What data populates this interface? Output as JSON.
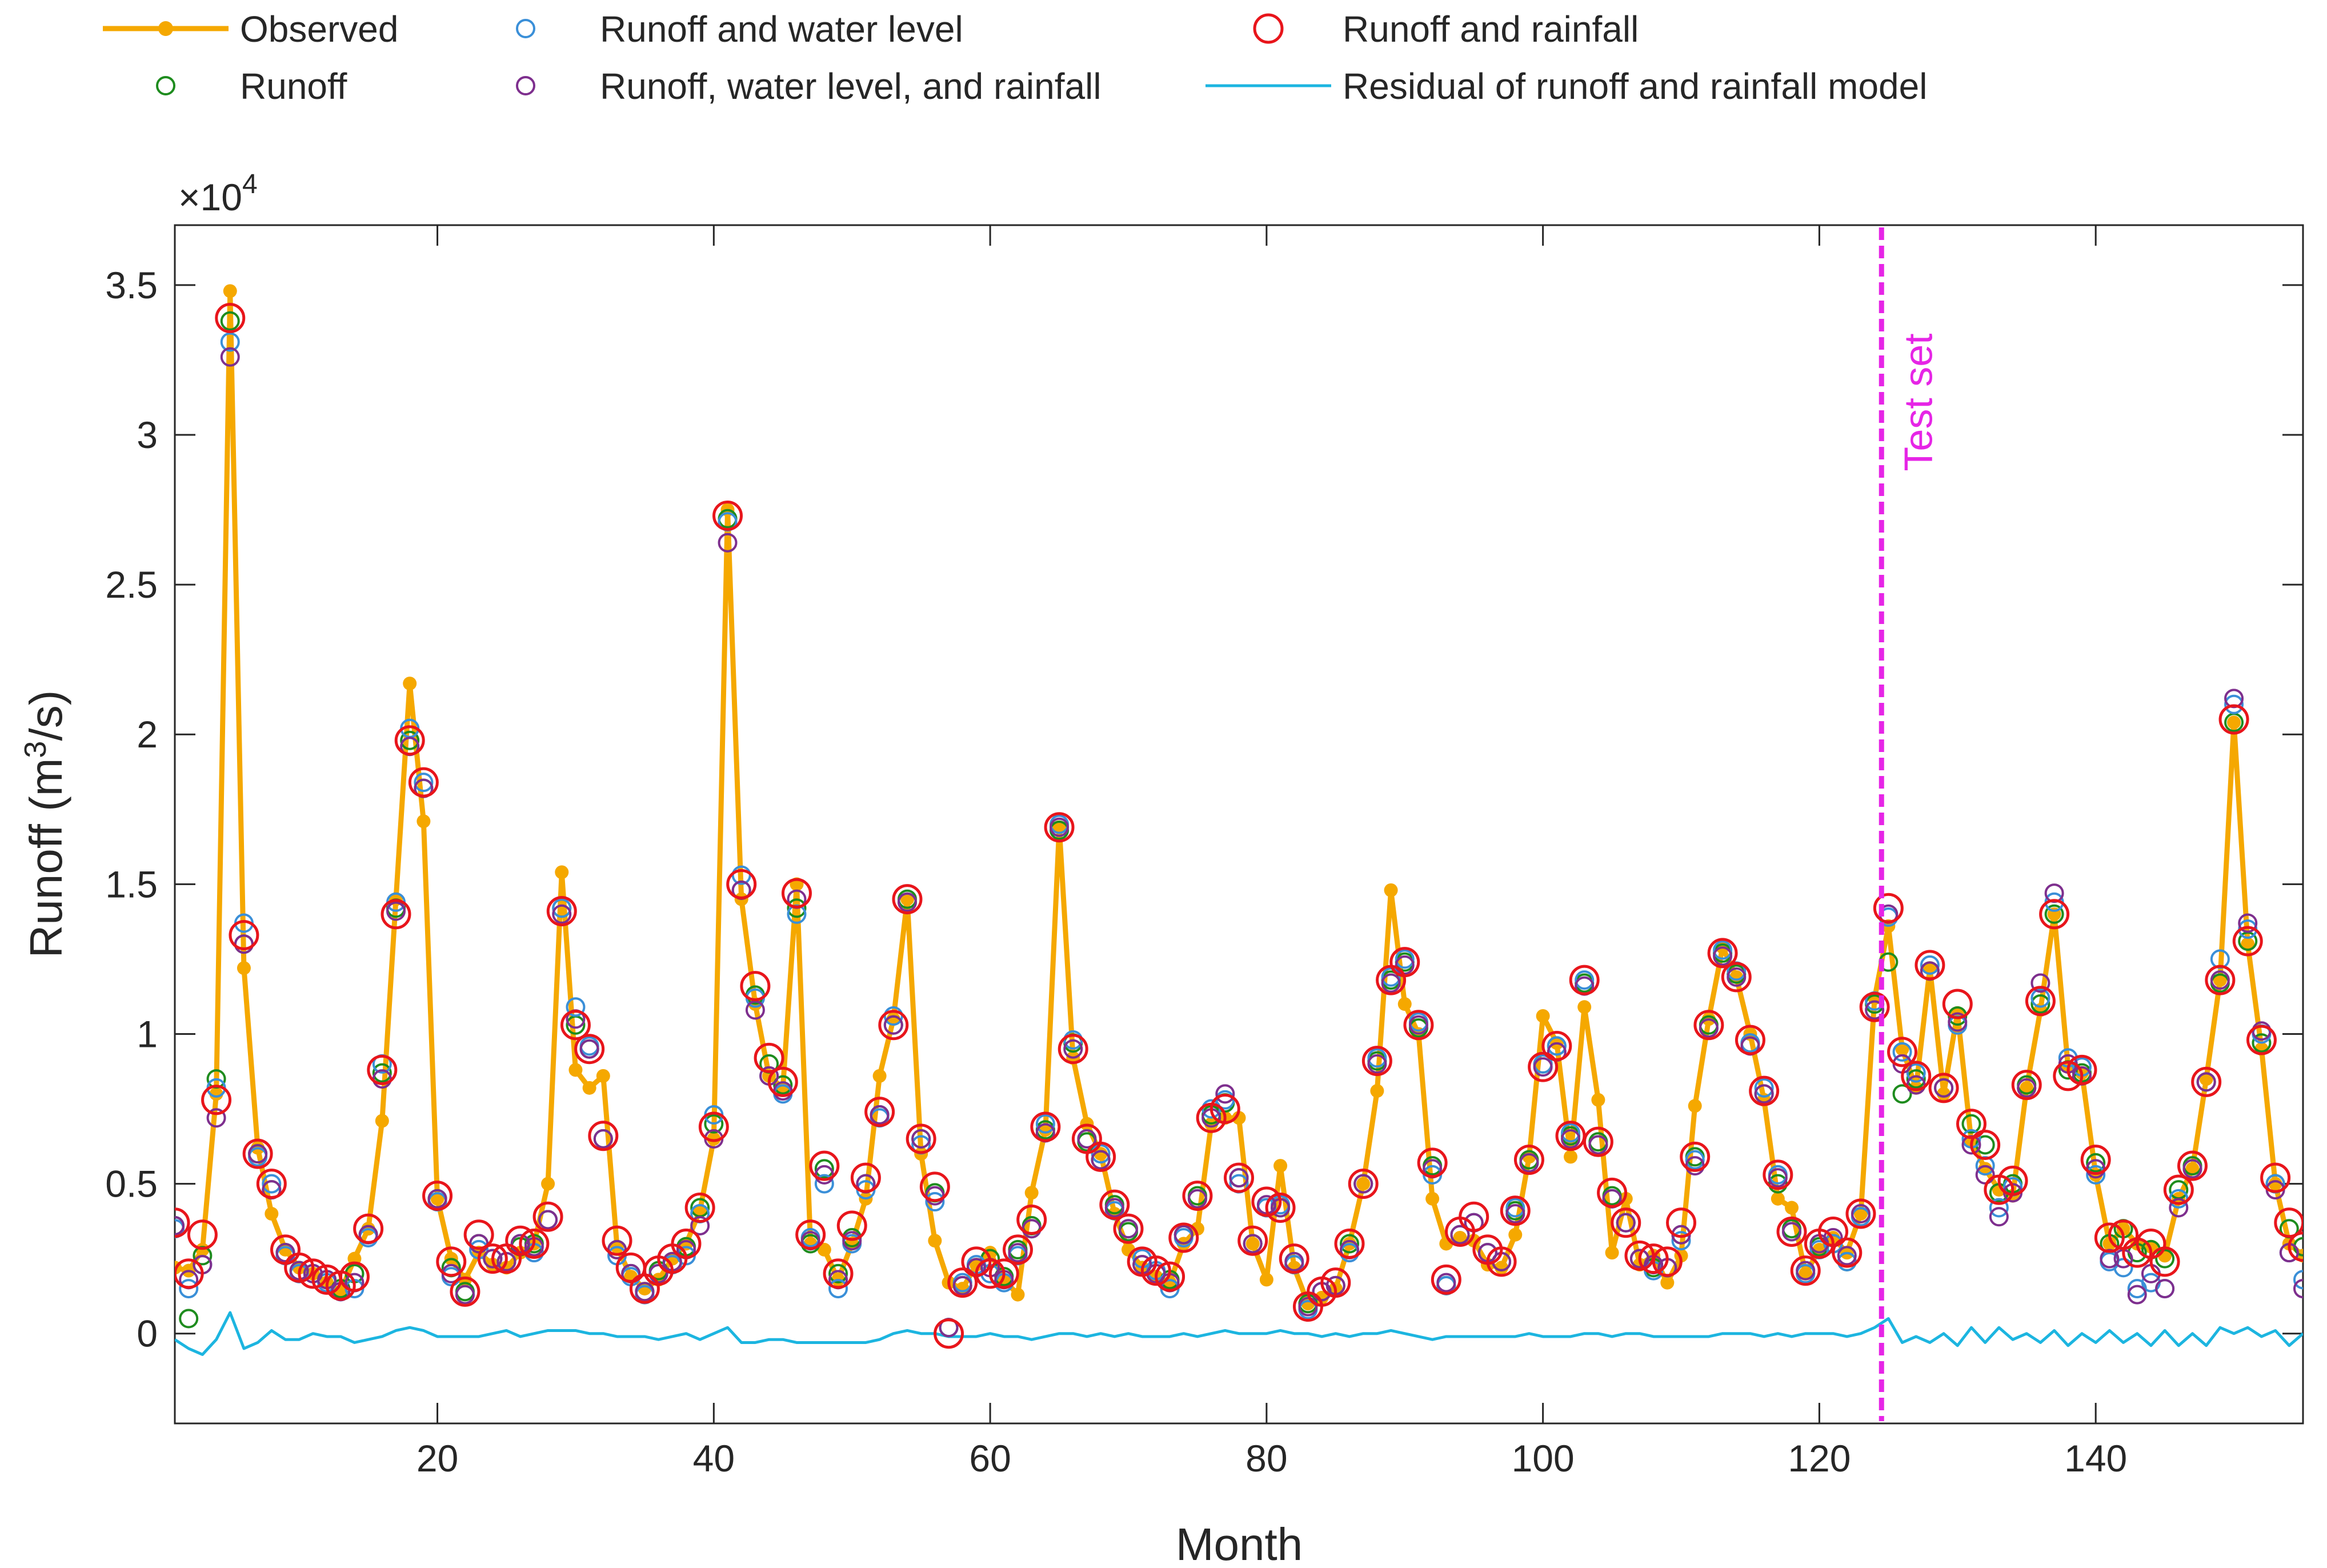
{
  "chart_data": {
    "type": "line",
    "title": "",
    "xlabel": "Month",
    "ylabel": "Runoff (m3/s)",
    "ylabel_base": "Runoff (m",
    "ylabel_sup": "3",
    "ylabel_tail": "/s)",
    "y_multiplier_base": "×10",
    "y_multiplier_exp": "4",
    "xlim": [
      1,
      155
    ],
    "ylim": [
      -0.3,
      3.7
    ],
    "xticks": [
      20,
      40,
      60,
      80,
      100,
      120,
      140
    ],
    "yticks": [
      0,
      0.5,
      1,
      1.5,
      2,
      2.5,
      3,
      3.5
    ],
    "ytick_labels": [
      "0",
      "0.5",
      "1",
      "1.5",
      "2",
      "2.5",
      "3",
      "3.5"
    ],
    "grid": false,
    "legend_position": "top",
    "test_split_month": 124.5,
    "test_label": "Test set",
    "colors": {
      "observed": "#F5A800",
      "runoff": "#1E8C1E",
      "runoff_water_level": "#3A8FD8",
      "runoff_wl_rainfall": "#7E2F8E",
      "runoff_rainfall": "#E8151B",
      "residual": "#1CB5E0",
      "test_line": "#E625E6"
    },
    "legend": [
      {
        "key": "observed",
        "label": "Observed",
        "style": "line-dot"
      },
      {
        "key": "runoff_water_level",
        "label": "Runoff and water level",
        "style": "circle"
      },
      {
        "key": "runoff_rainfall",
        "label": "Runoff and rainfall",
        "style": "circle-large"
      },
      {
        "key": "runoff",
        "label": "Runoff",
        "style": "circle"
      },
      {
        "key": "runoff_wl_rainfall",
        "label": "Runoff, water level, and rainfall",
        "style": "circle"
      },
      {
        "key": "residual",
        "label": "Residual of runoff and rainfall model",
        "style": "line"
      }
    ],
    "x": [
      1,
      2,
      3,
      4,
      5,
      6,
      7,
      8,
      9,
      10,
      11,
      12,
      13,
      14,
      15,
      16,
      17,
      18,
      19,
      20,
      21,
      22,
      23,
      24,
      25,
      26,
      27,
      28,
      29,
      30,
      31,
      32,
      33,
      34,
      35,
      36,
      37,
      38,
      39,
      40,
      41,
      42,
      43,
      44,
      45,
      46,
      47,
      48,
      49,
      50,
      51,
      52,
      53,
      54,
      55,
      56,
      57,
      58,
      59,
      60,
      61,
      62,
      63,
      64,
      65,
      66,
      67,
      68,
      69,
      70,
      71,
      72,
      73,
      74,
      75,
      76,
      77,
      78,
      79,
      80,
      81,
      82,
      83,
      84,
      85,
      86,
      87,
      88,
      89,
      90,
      91,
      92,
      93,
      94,
      95,
      96,
      97,
      98,
      99,
      100,
      101,
      102,
      103,
      104,
      105,
      106,
      107,
      108,
      109,
      110,
      111,
      112,
      113,
      114,
      115,
      116,
      117,
      118,
      119,
      120,
      121,
      122,
      123,
      124,
      125,
      126,
      127,
      128,
      129,
      130,
      131,
      132,
      133,
      134,
      135,
      136,
      137,
      138,
      139,
      140,
      141,
      142,
      143,
      144,
      145,
      146,
      147,
      148,
      149,
      150,
      151,
      152,
      153,
      154,
      155
    ],
    "series": [
      {
        "key": "observed",
        "name": "Observed",
        "values": [
          0.22,
          0.21,
          0.28,
          0.8,
          3.48,
          1.22,
          0.62,
          0.4,
          0.28,
          0.22,
          0.2,
          0.17,
          0.14,
          0.25,
          0.35,
          0.71,
          1.45,
          2.17,
          1.71,
          0.45,
          0.25,
          0.18,
          0.27,
          0.23,
          0.22,
          0.27,
          0.3,
          0.5,
          1.54,
          0.88,
          0.82,
          0.86,
          0.29,
          0.19,
          0.15,
          0.18,
          0.25,
          0.3,
          0.41,
          0.65,
          2.75,
          1.45,
          1.1,
          0.86,
          0.82,
          1.5,
          0.3,
          0.28,
          0.18,
          0.3,
          0.45,
          0.86,
          1.05,
          1.45,
          0.6,
          0.31,
          0.17,
          0.15,
          0.23,
          0.27,
          0.18,
          0.13,
          0.47,
          0.68,
          1.69,
          0.92,
          0.7,
          0.6,
          0.4,
          0.28,
          0.22,
          0.19,
          0.17,
          0.3,
          0.35,
          0.7,
          0.72,
          0.72,
          0.3,
          0.18,
          0.56,
          0.22,
          0.1,
          0.12,
          0.15,
          0.3,
          0.5,
          0.81,
          1.48,
          1.1,
          1.0,
          0.45,
          0.3,
          0.32,
          0.31,
          0.23,
          0.22,
          0.33,
          0.59,
          1.06,
          0.97,
          0.59,
          1.09,
          0.78,
          0.27,
          0.45,
          0.23,
          0.26,
          0.17,
          0.26,
          0.76,
          1.05,
          1.29,
          1.19,
          1.0,
          0.78,
          0.45,
          0.42,
          0.2,
          0.28,
          0.32,
          0.27,
          0.4,
          1.12,
          1.36,
          0.95,
          0.82,
          1.22,
          0.8,
          1.07,
          0.64,
          0.55,
          0.48,
          0.46,
          0.82,
          1.08,
          1.4,
          0.89,
          0.87,
          0.53,
          0.3,
          0.35,
          0.3,
          0.29,
          0.26,
          0.45,
          0.55,
          0.85,
          1.18,
          2.04,
          1.3,
          0.95,
          0.5,
          0.3,
          0.26
        ]
      },
      {
        "key": "runoff",
        "name": "Runoff",
        "values": [
          0.36,
          0.05,
          0.26,
          0.85,
          3.38,
          1.3,
          0.6,
          0.48,
          0.27,
          0.21,
          0.2,
          0.18,
          0.15,
          0.2,
          0.33,
          0.87,
          1.42,
          1.98,
          1.82,
          0.45,
          0.22,
          0.14,
          0.3,
          0.25,
          0.24,
          0.29,
          0.3,
          0.38,
          1.42,
          1.03,
          0.95,
          0.65,
          0.28,
          0.2,
          0.14,
          0.21,
          0.24,
          0.29,
          0.42,
          0.7,
          2.72,
          1.48,
          1.13,
          0.9,
          0.83,
          1.42,
          0.3,
          0.55,
          0.2,
          0.32,
          0.5,
          0.73,
          1.03,
          1.45,
          0.65,
          0.47,
          0.02,
          0.16,
          0.22,
          0.25,
          0.19,
          0.28,
          0.36,
          0.68,
          1.68,
          0.97,
          0.64,
          0.58,
          0.43,
          0.34,
          0.23,
          0.2,
          0.18,
          0.33,
          0.46,
          0.73,
          0.77,
          0.52,
          0.3,
          0.42,
          0.42,
          0.23,
          0.1,
          0.14,
          0.16,
          0.3,
          0.5,
          0.91,
          1.18,
          1.24,
          1.02,
          0.56,
          0.16,
          0.33,
          0.37,
          0.27,
          0.24,
          0.41,
          0.58,
          0.9,
          0.96,
          0.66,
          1.17,
          0.64,
          0.46,
          0.37,
          0.25,
          0.22,
          0.22,
          0.33,
          0.59,
          1.03,
          1.27,
          1.2,
          0.97,
          0.8,
          0.5,
          0.35,
          0.2,
          0.29,
          0.3,
          0.24,
          0.39,
          1.1,
          1.24,
          0.8,
          0.85,
          1.21,
          0.82,
          1.06,
          0.7,
          0.63,
          0.47,
          0.5,
          0.83,
          1.1,
          1.4,
          0.88,
          0.87,
          0.57,
          0.3,
          0.35,
          0.27,
          0.28,
          0.25,
          0.48,
          0.56,
          0.84,
          1.17,
          2.04,
          1.31,
          0.97,
          0.5,
          0.35,
          0.29
        ]
      },
      {
        "key": "runoff_water_level",
        "name": "Runoff and water level",
        "values": [
          0.35,
          0.15,
          0.23,
          0.82,
          3.31,
          1.37,
          0.59,
          0.5,
          0.26,
          0.2,
          0.2,
          0.17,
          0.14,
          0.15,
          0.32,
          0.9,
          1.44,
          2.02,
          1.84,
          0.44,
          0.19,
          0.13,
          0.28,
          0.25,
          0.24,
          0.3,
          0.27,
          0.38,
          1.42,
          1.09,
          0.96,
          0.65,
          0.26,
          0.19,
          0.13,
          0.2,
          0.23,
          0.26,
          0.4,
          0.73,
          2.71,
          1.53,
          1.12,
          0.86,
          0.8,
          1.4,
          0.32,
          0.5,
          0.15,
          0.3,
          0.48,
          0.72,
          1.06,
          1.44,
          0.63,
          0.44,
          0.02,
          0.17,
          0.23,
          0.2,
          0.17,
          0.26,
          0.35,
          0.7,
          1.7,
          0.98,
          0.65,
          0.6,
          0.41,
          0.35,
          0.25,
          0.21,
          0.15,
          0.32,
          0.45,
          0.75,
          0.78,
          0.5,
          0.3,
          0.42,
          0.43,
          0.23,
          0.08,
          0.14,
          0.16,
          0.27,
          0.5,
          0.92,
          1.19,
          1.25,
          1.04,
          0.53,
          0.16,
          0.33,
          0.37,
          0.27,
          0.24,
          0.42,
          0.57,
          0.9,
          0.96,
          0.67,
          1.18,
          0.63,
          0.45,
          0.37,
          0.25,
          0.21,
          0.22,
          0.31,
          0.58,
          1.02,
          1.28,
          1.21,
          0.97,
          0.82,
          0.53,
          0.34,
          0.2,
          0.28,
          0.3,
          0.24,
          0.39,
          1.11,
          1.39,
          0.94,
          0.87,
          1.23,
          0.82,
          1.03,
          0.65,
          0.56,
          0.42,
          0.49,
          0.82,
          1.12,
          1.44,
          0.92,
          0.89,
          0.53,
          0.24,
          0.22,
          0.15,
          0.17,
          0.15,
          0.45,
          0.55,
          0.84,
          1.25,
          2.1,
          1.35,
          1.0,
          0.5,
          0.27,
          0.18
        ]
      },
      {
        "key": "runoff_wl_rainfall",
        "name": "Runoff, water level, and rainfall",
        "values": [
          0.36,
          0.18,
          0.23,
          0.72,
          3.26,
          1.3,
          0.6,
          0.48,
          0.27,
          0.21,
          0.2,
          0.18,
          0.14,
          0.17,
          0.33,
          0.85,
          1.41,
          1.96,
          1.82,
          0.45,
          0.2,
          0.13,
          0.3,
          0.25,
          0.24,
          0.3,
          0.29,
          0.38,
          1.4,
          1.05,
          0.95,
          0.65,
          0.28,
          0.2,
          0.14,
          0.2,
          0.24,
          0.28,
          0.36,
          0.65,
          2.64,
          1.48,
          1.08,
          0.86,
          0.81,
          1.45,
          0.31,
          0.53,
          0.18,
          0.31,
          0.5,
          0.73,
          1.03,
          1.44,
          0.65,
          0.46,
          0.02,
          0.16,
          0.22,
          0.22,
          0.18,
          0.27,
          0.35,
          0.67,
          1.69,
          0.95,
          0.65,
          0.58,
          0.42,
          0.35,
          0.23,
          0.2,
          0.17,
          0.33,
          0.45,
          0.72,
          0.8,
          0.52,
          0.3,
          0.43,
          0.42,
          0.24,
          0.09,
          0.14,
          0.16,
          0.28,
          0.5,
          0.9,
          1.17,
          1.23,
          1.03,
          0.55,
          0.17,
          0.33,
          0.37,
          0.27,
          0.24,
          0.4,
          0.57,
          0.89,
          0.94,
          0.65,
          1.16,
          0.63,
          0.45,
          0.37,
          0.25,
          0.23,
          0.22,
          0.33,
          0.56,
          1.02,
          1.26,
          1.19,
          0.96,
          0.8,
          0.52,
          0.34,
          0.21,
          0.3,
          0.32,
          0.26,
          0.4,
          1.08,
          1.4,
          0.9,
          0.83,
          1.21,
          0.82,
          1.04,
          0.63,
          0.53,
          0.39,
          0.47,
          0.82,
          1.17,
          1.47,
          0.9,
          0.86,
          0.55,
          0.25,
          0.25,
          0.13,
          0.2,
          0.15,
          0.42,
          0.55,
          0.84,
          1.18,
          2.12,
          1.37,
          1.01,
          0.48,
          0.27,
          0.15
        ]
      },
      {
        "key": "runoff_rainfall",
        "name": "Runoff and rainfall",
        "values": [
          0.37,
          0.2,
          0.33,
          0.78,
          3.39,
          1.33,
          0.6,
          0.5,
          0.28,
          0.22,
          0.2,
          0.18,
          0.16,
          0.19,
          0.35,
          0.88,
          1.4,
          1.98,
          1.84,
          0.46,
          0.24,
          0.14,
          0.33,
          0.25,
          0.25,
          0.31,
          0.3,
          0.39,
          1.41,
          1.03,
          0.95,
          0.66,
          0.31,
          0.22,
          0.15,
          0.21,
          0.25,
          0.3,
          0.42,
          0.69,
          2.73,
          1.5,
          1.16,
          0.92,
          0.84,
          1.47,
          0.33,
          0.56,
          0.2,
          0.36,
          0.52,
          0.74,
          1.03,
          1.45,
          0.65,
          0.49,
          0.0,
          0.17,
          0.24,
          0.2,
          0.2,
          0.28,
          0.38,
          0.69,
          1.69,
          0.95,
          0.65,
          0.59,
          0.43,
          0.35,
          0.24,
          0.21,
          0.19,
          0.32,
          0.46,
          0.72,
          0.75,
          0.52,
          0.31,
          0.44,
          0.42,
          0.25,
          0.09,
          0.14,
          0.17,
          0.3,
          0.5,
          0.91,
          1.18,
          1.24,
          1.03,
          0.57,
          0.18,
          0.34,
          0.39,
          0.28,
          0.24,
          0.41,
          0.58,
          0.89,
          0.96,
          0.66,
          1.18,
          0.64,
          0.47,
          0.37,
          0.26,
          0.25,
          0.24,
          0.37,
          0.59,
          1.03,
          1.27,
          1.19,
          0.98,
          0.81,
          0.53,
          0.34,
          0.21,
          0.3,
          0.34,
          0.27,
          0.4,
          1.09,
          1.42,
          0.94,
          0.86,
          1.23,
          0.82,
          1.1,
          0.7,
          0.63,
          0.48,
          0.51,
          0.83,
          1.11,
          1.4,
          0.86,
          0.88,
          0.58,
          0.32,
          0.33,
          0.27,
          0.3,
          0.24,
          0.48,
          0.56,
          0.84,
          1.18,
          2.05,
          1.31,
          0.98,
          0.52,
          0.37,
          0.29
        ]
      },
      {
        "key": "residual",
        "name": "Residual of runoff and rainfall model",
        "values": [
          -0.02,
          -0.05,
          -0.07,
          -0.02,
          0.07,
          -0.05,
          -0.03,
          0.01,
          -0.02,
          -0.02,
          0.0,
          -0.01,
          -0.01,
          -0.03,
          -0.02,
          -0.01,
          0.01,
          0.02,
          0.01,
          -0.01,
          -0.01,
          -0.01,
          -0.01,
          0.0,
          0.01,
          -0.01,
          0.0,
          0.01,
          0.01,
          0.01,
          0.0,
          0.0,
          -0.01,
          -0.01,
          -0.01,
          -0.02,
          -0.01,
          0.0,
          -0.02,
          0.0,
          0.02,
          -0.03,
          -0.03,
          -0.02,
          -0.02,
          -0.03,
          -0.03,
          -0.03,
          -0.03,
          -0.03,
          -0.03,
          -0.02,
          0.0,
          0.01,
          0.0,
          0.0,
          -0.01,
          -0.01,
          -0.01,
          0.0,
          -0.01,
          -0.01,
          -0.02,
          -0.01,
          0.0,
          0.0,
          -0.01,
          0.0,
          -0.01,
          0.0,
          -0.01,
          -0.01,
          -0.01,
          0.0,
          -0.01,
          0.0,
          0.01,
          0.0,
          0.0,
          0.0,
          0.01,
          0.0,
          0.0,
          -0.01,
          0.0,
          -0.01,
          0.0,
          0.0,
          0.01,
          0.0,
          -0.01,
          -0.02,
          -0.01,
          -0.01,
          -0.01,
          -0.01,
          -0.01,
          -0.01,
          0.0,
          -0.01,
          -0.01,
          -0.01,
          0.0,
          0.0,
          -0.01,
          0.0,
          0.0,
          -0.01,
          -0.01,
          -0.01,
          -0.01,
          -0.01,
          0.0,
          0.0,
          0.0,
          -0.01,
          0.0,
          -0.01,
          0.0,
          0.0,
          0.0,
          -0.01,
          0.0,
          0.02,
          0.05,
          -0.03,
          -0.01,
          -0.03,
          0.0,
          -0.04,
          0.02,
          -0.03,
          0.02,
          -0.02,
          0.0,
          -0.03,
          0.01,
          -0.04,
          0.0,
          -0.03,
          0.01,
          -0.03,
          0.0,
          -0.04,
          0.01,
          -0.04,
          0.0,
          -0.04,
          0.02,
          0.0,
          0.02,
          -0.01,
          0.01,
          -0.04,
          0.0
        ]
      }
    ]
  }
}
